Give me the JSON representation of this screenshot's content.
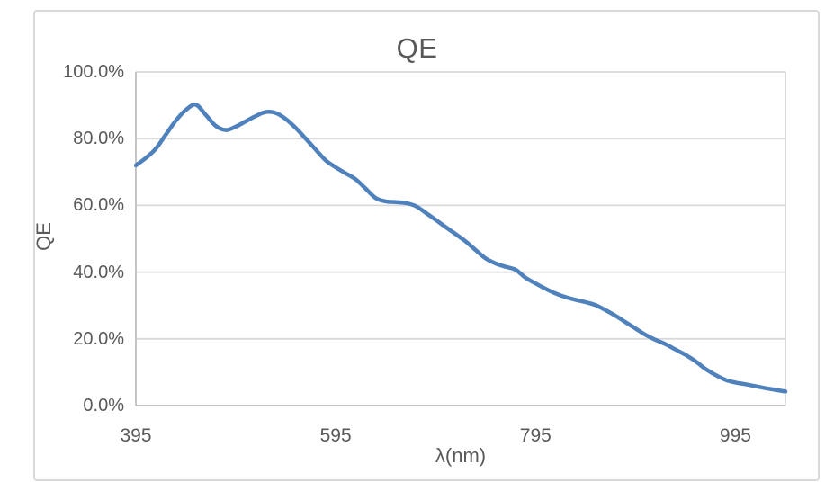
{
  "chart": {
    "title": "QE",
    "x_axis_title": "λ(nm)",
    "y_axis_title": "QE"
  },
  "colors": {
    "series": "#4F81BD",
    "text": "#595959",
    "gridline": "#D9D9D9",
    "axis_line": "#BFBFBF",
    "frame_border": "#D9D9D9"
  },
  "chart_data": {
    "type": "line",
    "title": "QE",
    "xlabel": "λ(nm)",
    "ylabel": "QE",
    "legend": "none",
    "grid": "horizontal-major",
    "smooth": true,
    "xlim": [
      395,
      1045
    ],
    "ylim_percent": [
      0,
      100
    ],
    "x_tick_values": [
      395,
      595,
      795,
      995
    ],
    "x_tick_labels": [
      "395",
      "595",
      "795",
      "995"
    ],
    "y_tick_values": [
      0,
      20,
      40,
      60,
      80,
      100
    ],
    "y_tick_labels": [
      "0.0%",
      "20.0%",
      "40.0%",
      "60.0%",
      "80.0%",
      "100.0%"
    ],
    "x": [
      395,
      405,
      415,
      425,
      435,
      445,
      455,
      465,
      475,
      485,
      495,
      505,
      515,
      525,
      535,
      545,
      555,
      565,
      575,
      585,
      595,
      605,
      615,
      625,
      635,
      645,
      655,
      665,
      675,
      685,
      695,
      705,
      715,
      725,
      735,
      745,
      755,
      765,
      775,
      785,
      795,
      805,
      815,
      825,
      835,
      845,
      855,
      865,
      875,
      885,
      895,
      905,
      915,
      925,
      935,
      945,
      955,
      965,
      975,
      985,
      995,
      1005,
      1015,
      1025,
      1035,
      1045
    ],
    "qe_percent": [
      72.0,
      74.2,
      77.0,
      81.2,
      85.4,
      88.6,
      90.2,
      87.1,
      83.8,
      82.6,
      83.6,
      85.2,
      86.8,
      88.0,
      87.7,
      85.9,
      83.2,
      80.0,
      76.7,
      73.5,
      71.4,
      69.6,
      67.8,
      65.0,
      62.2,
      61.2,
      61.0,
      60.7,
      59.8,
      57.8,
      55.7,
      53.5,
      51.4,
      49.2,
      46.6,
      44.1,
      42.6,
      41.6,
      40.7,
      38.3,
      36.6,
      35.0,
      33.6,
      32.5,
      31.7,
      31.0,
      30.1,
      28.6,
      26.9,
      25.0,
      23.1,
      21.2,
      19.7,
      18.4,
      16.8,
      15.2,
      13.3,
      11.0,
      9.2,
      7.7,
      6.9,
      6.4,
      5.8,
      5.2,
      4.7,
      4.2
    ]
  }
}
